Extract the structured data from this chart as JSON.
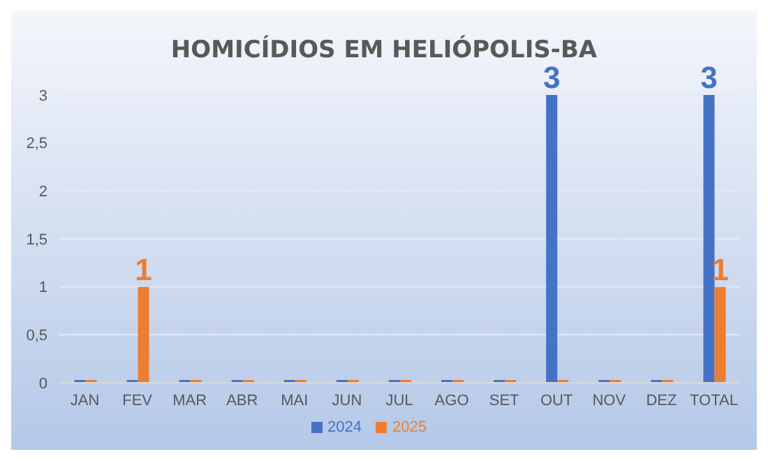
{
  "chart_data": {
    "type": "bar",
    "title": "HOMICÍDIOS EM HELIÓPOLIS-BA",
    "categories": [
      "JAN",
      "FEV",
      "MAR",
      "ABR",
      "MAI",
      "JUN",
      "JUL",
      "AGO",
      "SET",
      "OUT",
      "NOV",
      "DEZ",
      "TOTAL"
    ],
    "series": [
      {
        "name": "2024",
        "color": "#4472c4",
        "values": [
          0,
          0,
          0,
          0,
          0,
          0,
          0,
          0,
          0,
          3,
          0,
          0,
          3
        ],
        "value_labels": [
          null,
          null,
          null,
          null,
          null,
          null,
          null,
          null,
          null,
          "3",
          null,
          null,
          "3"
        ]
      },
      {
        "name": "2025",
        "color": "#ed7d31",
        "values": [
          0,
          1,
          0,
          0,
          0,
          0,
          0,
          0,
          0,
          0,
          0,
          0,
          1
        ],
        "value_labels": [
          null,
          "1",
          null,
          null,
          null,
          null,
          null,
          null,
          null,
          null,
          null,
          null,
          "1"
        ]
      }
    ],
    "ylim": [
      0,
      3
    ],
    "yticks": [
      0,
      {
        "value": 0.5,
        "label": "0,5"
      },
      1,
      {
        "value": 1.5,
        "label": "1,5"
      },
      2,
      {
        "value": 2.5,
        "label": "2,5"
      },
      3
    ],
    "grid": "y",
    "legend": "bottom"
  }
}
